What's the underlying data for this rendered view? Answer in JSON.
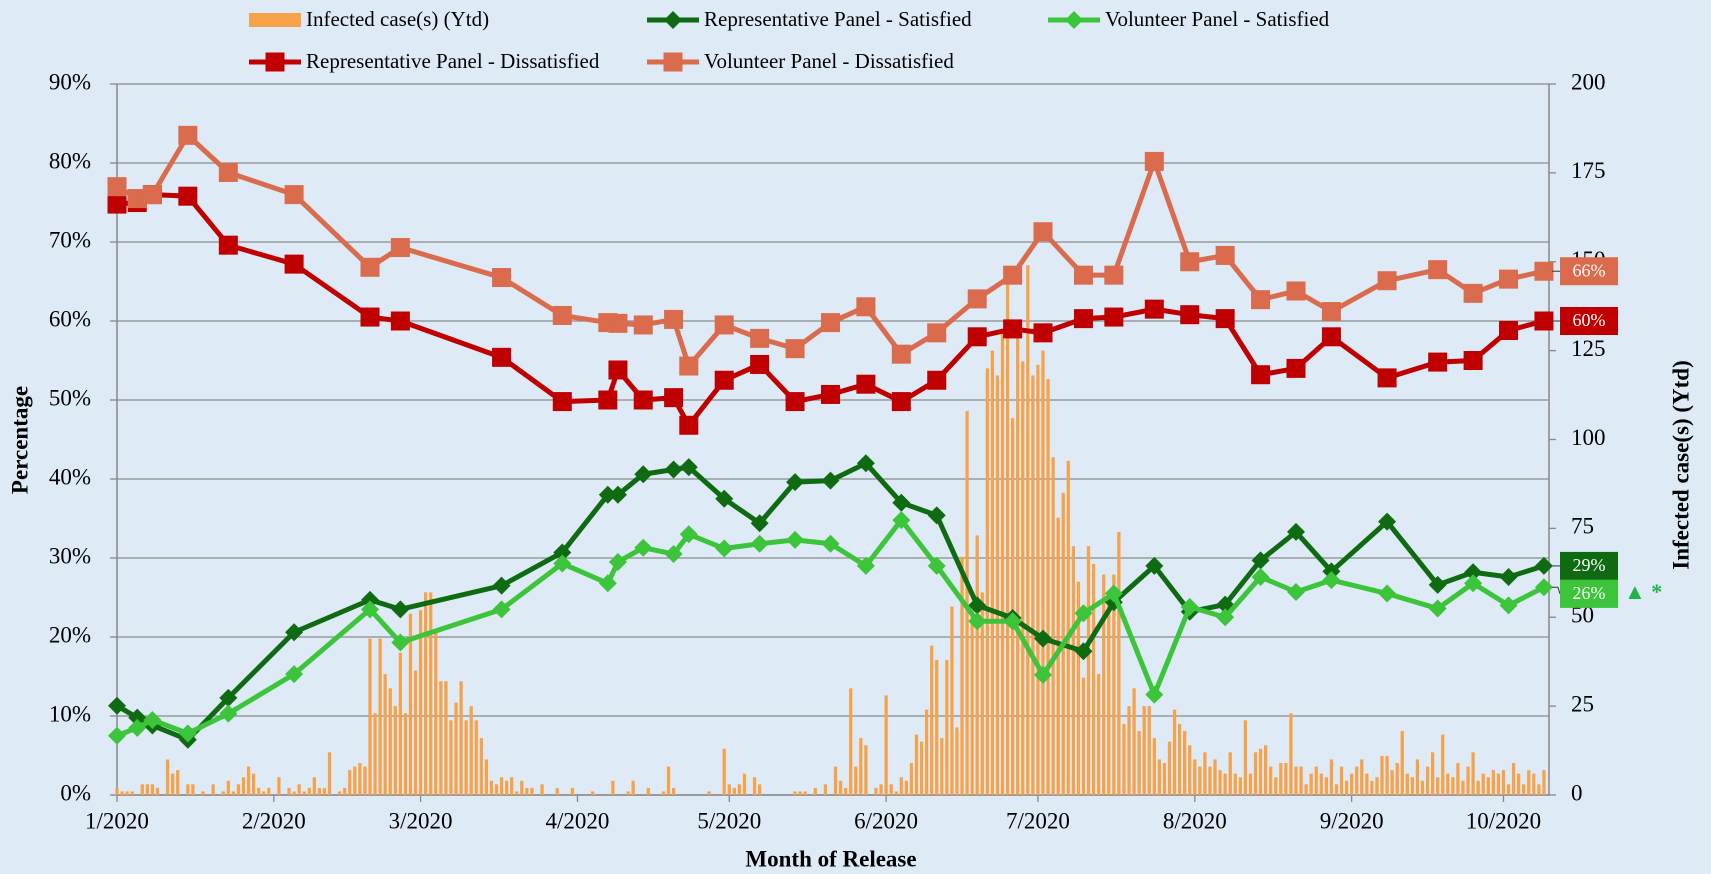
{
  "chart_data": {
    "type": "combo",
    "x_label": "Month of Release",
    "y_label": "Percentage",
    "y2_label": "Infected case(s) (Ytd)",
    "annotation": "▲ *",
    "annotation_color": "#21b34a",
    "grid": true,
    "xlim": [
      0,
      283
    ],
    "xticks": [
      {
        "value": 0,
        "label": "1/2020"
      },
      {
        "value": 31,
        "label": "2/2020"
      },
      {
        "value": 60,
        "label": "3/2020"
      },
      {
        "value": 91,
        "label": "4/2020"
      },
      {
        "value": 121,
        "label": "5/2020"
      },
      {
        "value": 152,
        "label": "6/2020"
      },
      {
        "value": 182,
        "label": "7/2020"
      },
      {
        "value": 213,
        "label": "8/2020"
      },
      {
        "value": 244,
        "label": "9/2020"
      },
      {
        "value": 274,
        "label": "10/2020"
      }
    ],
    "ylim": [
      0,
      90
    ],
    "yticks": [
      {
        "value": 0,
        "label": "0%"
      },
      {
        "value": 10,
        "label": "10%"
      },
      {
        "value": 20,
        "label": "20%"
      },
      {
        "value": 30,
        "label": "30%"
      },
      {
        "value": 40,
        "label": "40%"
      },
      {
        "value": 50,
        "label": "50%"
      },
      {
        "value": 60,
        "label": "60%"
      },
      {
        "value": 70,
        "label": "70%"
      },
      {
        "value": 80,
        "label": "80%"
      },
      {
        "value": 90,
        "label": "90%"
      }
    ],
    "y2lim": [
      0,
      200
    ],
    "y2ticks": [
      0,
      25,
      50,
      75,
      100,
      125,
      150,
      175,
      200
    ],
    "x": [
      0,
      4,
      7,
      14,
      22,
      35,
      50,
      56,
      76,
      88,
      97,
      99,
      104,
      110,
      113,
      120,
      127,
      134,
      141,
      148,
      155,
      162,
      170,
      177,
      183,
      191,
      197,
      205,
      212,
      219,
      226,
      233,
      240,
      251,
      261,
      268,
      275,
      282
    ],
    "series": [
      {
        "name": "Infected case(s) (Ytd)",
        "type": "bar",
        "axis": "y2",
        "color": "#f7a148",
        "x": [
          0,
          1,
          2,
          3,
          4,
          5,
          6,
          7,
          8,
          9,
          10,
          11,
          12,
          13,
          14,
          15,
          16,
          17,
          18,
          19,
          20,
          21,
          22,
          23,
          24,
          25,
          26,
          27,
          28,
          29,
          30,
          31,
          32,
          33,
          34,
          35,
          36,
          37,
          38,
          39,
          40,
          41,
          42,
          43,
          44,
          45,
          46,
          47,
          48,
          49,
          50,
          51,
          52,
          53,
          54,
          55,
          56,
          57,
          58,
          59,
          60,
          61,
          62,
          63,
          64,
          65,
          66,
          67,
          68,
          69,
          70,
          71,
          72,
          73,
          74,
          75,
          76,
          77,
          78,
          79,
          80,
          81,
          82,
          83,
          84,
          85,
          86,
          87,
          88,
          89,
          90,
          91,
          92,
          93,
          94,
          95,
          96,
          97,
          98,
          99,
          100,
          101,
          102,
          103,
          104,
          105,
          106,
          107,
          108,
          109,
          110,
          111,
          112,
          113,
          114,
          115,
          116,
          117,
          118,
          119,
          120,
          121,
          122,
          123,
          124,
          125,
          126,
          127,
          128,
          129,
          130,
          131,
          132,
          133,
          134,
          135,
          136,
          137,
          138,
          139,
          140,
          141,
          142,
          143,
          144,
          145,
          146,
          147,
          148,
          149,
          150,
          151,
          152,
          153,
          154,
          155,
          156,
          157,
          158,
          159,
          160,
          161,
          162,
          163,
          164,
          165,
          166,
          167,
          168,
          169,
          170,
          171,
          172,
          173,
          174,
          175,
          176,
          177,
          178,
          179,
          180,
          181,
          182,
          183,
          184,
          185,
          186,
          187,
          188,
          189,
          190,
          191,
          192,
          193,
          194,
          195,
          196,
          197,
          198,
          199,
          200,
          201,
          202,
          203,
          204,
          205,
          206,
          207,
          208,
          209,
          210,
          211,
          212,
          213,
          214,
          215,
          216,
          217,
          218,
          219,
          220,
          221,
          222,
          223,
          224,
          225,
          226,
          227,
          228,
          229,
          230,
          231,
          232,
          233,
          234,
          235,
          236,
          237,
          238,
          239,
          240,
          241,
          242,
          243,
          244,
          245,
          246,
          247,
          248,
          249,
          250,
          251,
          252,
          253,
          254,
          255,
          256,
          257,
          258,
          259,
          260,
          261,
          262,
          263,
          264,
          265,
          266,
          267,
          268,
          269,
          270,
          271,
          272,
          273,
          274,
          275,
          276,
          277,
          278,
          279,
          280,
          281,
          282
        ],
        "values": [
          2,
          1,
          1,
          1,
          0,
          3,
          3,
          3,
          2,
          0,
          10,
          6,
          7,
          0,
          3,
          3,
          0,
          1,
          0,
          3,
          0,
          1,
          4,
          1,
          3,
          5,
          8,
          6,
          2,
          1,
          2,
          0,
          5,
          0,
          2,
          1,
          3,
          1,
          2,
          5,
          2,
          2,
          12,
          0,
          1,
          2,
          7,
          8,
          9,
          8,
          44,
          23,
          44,
          34,
          30,
          25,
          40,
          23,
          51,
          35,
          52,
          57,
          57,
          46,
          32,
          32,
          21,
          26,
          32,
          21,
          25,
          21,
          16,
          10,
          4,
          3,
          5,
          4,
          5,
          1,
          4,
          2,
          2,
          0,
          3,
          0,
          0,
          2,
          0,
          0,
          2,
          0,
          0,
          0,
          1,
          0,
          0,
          0,
          4,
          0,
          0,
          1,
          4,
          0,
          0,
          2,
          0,
          0,
          1,
          8,
          2,
          0,
          0,
          0,
          0,
          0,
          0,
          1,
          0,
          0,
          13,
          3,
          2,
          3,
          6,
          0,
          5,
          3,
          0,
          0,
          0,
          0,
          0,
          0,
          1,
          1,
          1,
          0,
          2,
          0,
          3,
          0,
          8,
          4,
          2,
          30,
          8,
          16,
          14,
          0,
          2,
          3,
          28,
          3,
          1,
          5,
          4,
          9,
          17,
          15,
          24,
          42,
          38,
          16,
          38,
          53,
          19,
          67,
          108,
          52,
          73,
          57,
          120,
          125,
          118,
          131,
          145,
          106,
          130,
          122,
          149,
          118,
          121,
          125,
          117,
          95,
          78,
          85,
          94,
          70,
          60,
          33,
          70,
          65,
          34,
          62,
          55,
          62,
          74,
          20,
          25,
          30,
          18,
          25,
          25,
          16,
          10,
          9,
          15,
          24,
          20,
          18,
          14,
          10,
          8,
          12,
          8,
          10,
          7,
          6,
          12,
          6,
          5,
          21,
          6,
          12,
          13,
          14,
          8,
          5,
          9,
          9,
          23,
          8,
          8,
          3,
          6,
          8,
          6,
          5,
          10,
          3,
          8,
          4,
          6,
          8,
          10,
          6,
          4,
          5,
          11,
          11,
          7,
          9,
          18,
          6,
          5,
          10,
          4,
          8,
          12,
          5,
          17,
          6,
          5,
          9,
          4,
          8,
          12,
          4,
          6,
          5,
          7,
          6,
          7,
          3,
          9,
          6,
          3,
          7,
          6,
          3,
          7
        ]
      },
      {
        "name": "Representative Panel - Satisfied",
        "type": "line",
        "marker": "diamond",
        "color": "#0f6b12",
        "values": [
          11.3,
          9.8,
          8.8,
          7,
          12.3,
          20.6,
          24.7,
          23.5,
          26.5,
          30.7,
          38,
          38,
          40.6,
          41.2,
          41.5,
          37.5,
          34.4,
          39.6,
          39.8,
          42,
          37,
          35.4,
          24,
          22.4,
          19.8,
          18.2,
          24.4,
          29,
          23.2,
          24.1,
          29.7,
          33.3,
          28.3,
          34.6,
          26.6,
          28.2,
          27.6,
          29
        ],
        "value_labels": [
          null,
          null,
          null,
          null,
          null,
          null,
          null,
          null,
          null,
          null,
          null,
          null,
          null,
          null,
          null,
          null,
          null,
          null,
          null,
          null,
          null,
          null,
          null,
          null,
          null,
          null,
          null,
          null,
          null,
          null,
          null,
          null,
          null,
          null,
          null,
          null,
          null,
          "29%"
        ]
      },
      {
        "name": "Volunteer Panel - Satisfied",
        "type": "line",
        "marker": "diamond",
        "color": "#3cc43a",
        "values": [
          7.5,
          8.5,
          9.5,
          7.8,
          10.3,
          15.3,
          23.5,
          19.3,
          23.5,
          29.3,
          26.8,
          29.5,
          31.3,
          30.5,
          33,
          31.2,
          31.8,
          32.3,
          31.8,
          29,
          34.8,
          29,
          22,
          22,
          15.2,
          23,
          25.5,
          12.7,
          23.8,
          22.5,
          27.6,
          25.7,
          27.2,
          25.5,
          23.6,
          26.8,
          24,
          26.3
        ],
        "value_labels": [
          null,
          null,
          null,
          null,
          null,
          null,
          null,
          null,
          null,
          null,
          null,
          null,
          null,
          null,
          null,
          null,
          null,
          null,
          null,
          null,
          null,
          null,
          null,
          null,
          null,
          null,
          null,
          null,
          null,
          null,
          null,
          null,
          null,
          null,
          null,
          null,
          null,
          "26%"
        ]
      },
      {
        "name": "Representative Panel - Dissatisfied",
        "type": "line",
        "marker": "square",
        "color": "#c00000",
        "values": [
          74.8,
          75,
          76,
          75.8,
          69.6,
          67.2,
          60.5,
          60,
          55.4,
          49.8,
          50,
          53.8,
          50,
          50.3,
          46.8,
          52.5,
          54.5,
          49.8,
          50.7,
          52,
          49.8,
          52.5,
          58,
          59,
          58.5,
          60.3,
          60.5,
          61.5,
          60.8,
          60.3,
          53.2,
          54,
          58,
          52.8,
          54.8,
          55,
          58.8,
          60
        ],
        "value_labels": [
          null,
          null,
          null,
          null,
          null,
          null,
          null,
          null,
          null,
          null,
          null,
          null,
          null,
          null,
          null,
          null,
          null,
          null,
          null,
          null,
          null,
          null,
          null,
          null,
          null,
          null,
          null,
          null,
          null,
          null,
          null,
          null,
          null,
          null,
          null,
          null,
          null,
          "60%"
        ]
      },
      {
        "name": "Volunteer Panel - Dissatisfied",
        "type": "line",
        "marker": "square",
        "color": "#da6b4c",
        "values": [
          77,
          75.5,
          76,
          83.5,
          78.8,
          76,
          66.8,
          69.3,
          65.5,
          60.7,
          59.8,
          59.7,
          59.5,
          60.2,
          54.3,
          59.5,
          57.8,
          56.5,
          59.8,
          61.8,
          55.8,
          58.5,
          62.8,
          65.8,
          71.3,
          65.8,
          65.8,
          80.2,
          67.5,
          68.3,
          62.7,
          63.8,
          61.2,
          65.1,
          66.5,
          63.5,
          65.3,
          66.3
        ],
        "value_labels": [
          null,
          null,
          null,
          null,
          null,
          null,
          null,
          null,
          null,
          null,
          null,
          null,
          null,
          null,
          null,
          null,
          null,
          null,
          null,
          null,
          null,
          null,
          null,
          null,
          null,
          null,
          null,
          null,
          null,
          null,
          null,
          null,
          null,
          null,
          null,
          null,
          null,
          "66%"
        ]
      }
    ]
  }
}
